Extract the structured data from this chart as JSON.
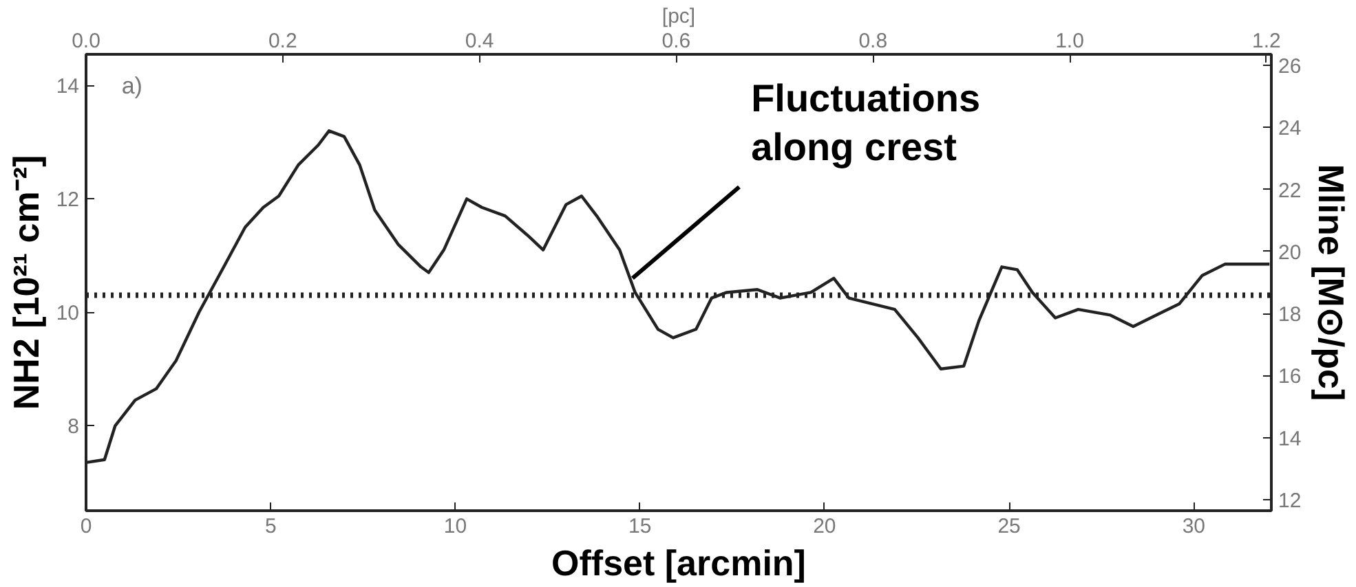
{
  "chart_data": {
    "type": "line",
    "xlabel": "Offset [arcmin]",
    "x2label": "[pc]",
    "ylabel": "NH2 [10²¹ cm⁻²]",
    "y2label": "Mline [M⊙/pc]",
    "xlim": [
      0,
      32.1
    ],
    "xticks": [
      0,
      5,
      10,
      15,
      20,
      25,
      30
    ],
    "x2lim": [
      0,
      1.205
    ],
    "x2ticks": [
      {
        "value": 0,
        "label": "0.0"
      },
      {
        "value": 0.2,
        "label": "0.2"
      },
      {
        "value": 0.4,
        "label": "0.4"
      },
      {
        "value": 0.6,
        "label": "0.6"
      },
      {
        "value": 0.8,
        "label": "0.8"
      },
      {
        "value": 1.0,
        "label": "1.0"
      },
      {
        "value": 1.2,
        "label": "1.2"
      }
    ],
    "ylim": [
      6.5,
      14.55
    ],
    "yticks": [
      8,
      10,
      12,
      14
    ],
    "y2lim": [
      11.64,
      26.36
    ],
    "y2ticks": [
      12,
      14,
      16,
      18,
      20,
      22,
      24,
      26
    ],
    "grid": false,
    "marker": "none",
    "line_style": "solid",
    "ref_lines": [
      {
        "axis": "y",
        "value": 10.3,
        "label": null,
        "color": "#222222",
        "line_style": "dotted"
      }
    ],
    "annotations": [
      "a)",
      {
        "text": "Fluctuations along crest",
        "x": 14.8,
        "y": 10.6
      }
    ],
    "series": [
      {
        "color": "#222222",
        "x": [
          0,
          0.5,
          0.79,
          1.33,
          1.9,
          2.44,
          3.06,
          3.73,
          4.31,
          4.8,
          5.22,
          5.75,
          6.29,
          6.58,
          6.99,
          7.41,
          7.82,
          8.45,
          9.07,
          9.28,
          9.69,
          10.31,
          10.72,
          11.35,
          11.97,
          12.38,
          13.0,
          13.42,
          13.83,
          14.45,
          14.87,
          15.49,
          15.9,
          16.52,
          16.94,
          17.35,
          18.18,
          18.8,
          19.63,
          20.25,
          20.66,
          21.28,
          21.9,
          22.53,
          23.15,
          23.77,
          24.18,
          24.8,
          25.22,
          25.63,
          26.25,
          26.87,
          27.74,
          28.36,
          28.98,
          29.61,
          30.23,
          30.85,
          32.05
        ],
        "values": [
          7.35,
          7.4,
          8.0,
          8.45,
          8.65,
          9.15,
          10.0,
          10.8,
          11.5,
          11.85,
          12.05,
          12.6,
          12.95,
          13.2,
          13.1,
          12.6,
          11.8,
          11.2,
          10.8,
          10.7,
          11.1,
          12.0,
          11.85,
          11.7,
          11.35,
          11.1,
          11.9,
          12.05,
          11.7,
          11.1,
          10.35,
          9.7,
          9.55,
          9.7,
          10.25,
          10.35,
          10.4,
          10.25,
          10.35,
          10.6,
          10.25,
          10.15,
          10.05,
          9.55,
          9.0,
          9.05,
          9.85,
          10.8,
          10.75,
          10.35,
          9.9,
          10.05,
          9.95,
          9.75,
          9.95,
          10.15,
          10.65,
          10.85,
          10.85
        ]
      }
    ]
  }
}
